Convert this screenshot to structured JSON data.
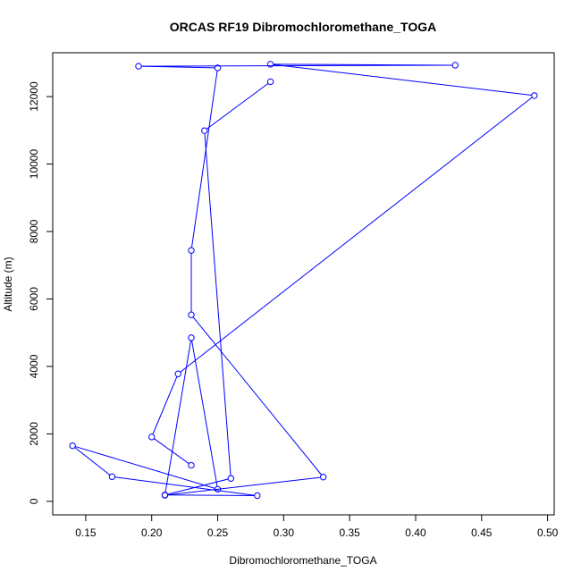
{
  "chart_data": {
    "type": "line",
    "title": "ORCAS RF19 Dibromochloromethane_TOGA",
    "xlabel": "Dibromochloromethane_TOGA",
    "ylabel": "Altitude (m)",
    "xlim": [
      0.125,
      0.505
    ],
    "ylim": [
      -400,
      13300
    ],
    "xticks": [
      0.15,
      0.2,
      0.25,
      0.3,
      0.35,
      0.4,
      0.45,
      0.5
    ],
    "xtick_labels": [
      "0.15",
      "0.20",
      "0.25",
      "0.30",
      "0.35",
      "0.40",
      "0.45",
      "0.50"
    ],
    "yticks": [
      0,
      2000,
      4000,
      6000,
      8000,
      10000,
      12000
    ],
    "ytick_labels": [
      "0",
      "2000",
      "4000",
      "6000",
      "8000",
      "10000",
      "12000"
    ],
    "series_color": "#0000ff",
    "markers": "open-circle",
    "grid": false,
    "points": [
      {
        "x": 0.23,
        "y": 1070
      },
      {
        "x": 0.2,
        "y": 1910
      },
      {
        "x": 0.22,
        "y": 3780
      },
      {
        "x": 0.49,
        "y": 12030
      },
      {
        "x": 0.29,
        "y": 12960
      },
      {
        "x": 0.43,
        "y": 12930
      },
      {
        "x": 0.19,
        "y": 12900
      },
      {
        "x": 0.25,
        "y": 12850
      },
      {
        "x": 0.23,
        "y": 7440
      },
      {
        "x": 0.23,
        "y": 5530
      },
      {
        "x": 0.33,
        "y": 720
      },
      {
        "x": 0.21,
        "y": 180
      },
      {
        "x": 0.23,
        "y": 4850
      },
      {
        "x": 0.25,
        "y": 360
      },
      {
        "x": 0.14,
        "y": 1650
      },
      {
        "x": 0.17,
        "y": 730
      },
      {
        "x": 0.28,
        "y": 170
      },
      {
        "x": 0.21,
        "y": 190
      },
      {
        "x": 0.26,
        "y": 680
      },
      {
        "x": 0.24,
        "y": 10990
      },
      {
        "x": 0.29,
        "y": 12440
      }
    ]
  }
}
